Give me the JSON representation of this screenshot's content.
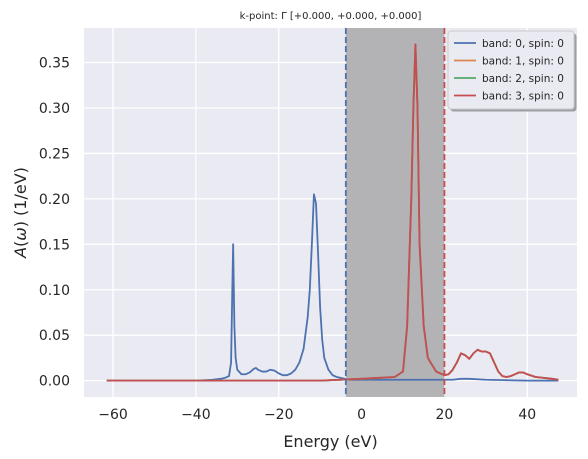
{
  "chart_data": {
    "type": "line",
    "title": "k-point: Γ [+0.000, +0.000, +0.000]",
    "xlabel": "Energy (eV)",
    "ylabel": "A(ω) (1/eV)",
    "xlim": [
      -67,
      52
    ],
    "ylim": [
      -0.018,
      0.388
    ],
    "xticks": [
      -60,
      -40,
      -20,
      0,
      20,
      40
    ],
    "yticks": [
      0.0,
      0.05,
      0.1,
      0.15,
      0.2,
      0.25,
      0.3,
      0.35
    ],
    "grid": true,
    "legend_position": "top-right",
    "shaded_region": {
      "x0": -3.8,
      "x1": 20.0,
      "color": "#b3b2b4"
    },
    "vertical_lines": [
      {
        "x": -3.8,
        "color": "#4c72b0",
        "style": "dashed"
      },
      {
        "x": 20.0,
        "color": "#c44e52",
        "style": "dashed"
      }
    ],
    "series": [
      {
        "name": "band: 0, spin: 0",
        "color": "#4c72b0",
        "x": [
          -61.5,
          -50,
          -40,
          -36,
          -34,
          -33,
          -32,
          -31.5,
          -31.2,
          -31.0,
          -30.7,
          -30.4,
          -30.0,
          -29.0,
          -28.0,
          -27.0,
          -26.0,
          -25.5,
          -25.0,
          -24.0,
          -23.0,
          -22.0,
          -21.0,
          -20.0,
          -19.0,
          -18.0,
          -17.0,
          -16.0,
          -15.0,
          -14.0,
          -13.0,
          -12.5,
          -12.0,
          -11.5,
          -11.0,
          -10.5,
          -10.0,
          -9.5,
          -9.0,
          -8.0,
          -7.0,
          -6.0,
          -5.0,
          -4.0,
          -3.0,
          0,
          10,
          20,
          22,
          24,
          26,
          30,
          40,
          47.5
        ],
        "y": [
          0.0,
          0.0,
          0.0,
          0.001,
          0.002,
          0.003,
          0.005,
          0.02,
          0.1,
          0.15,
          0.06,
          0.025,
          0.012,
          0.007,
          0.007,
          0.009,
          0.013,
          0.014,
          0.012,
          0.01,
          0.01,
          0.012,
          0.011,
          0.008,
          0.006,
          0.006,
          0.008,
          0.012,
          0.02,
          0.035,
          0.07,
          0.1,
          0.15,
          0.205,
          0.195,
          0.14,
          0.08,
          0.045,
          0.025,
          0.012,
          0.006,
          0.004,
          0.003,
          0.002,
          0.001,
          0.001,
          0.001,
          0.001,
          0.001,
          0.002,
          0.002,
          0.001,
          0.0,
          0.0
        ]
      },
      {
        "name": "band: 1, spin: 0",
        "color": "#dd8452",
        "x": [
          -61.5,
          -10,
          0,
          8,
          10,
          11,
          12,
          12.5,
          13,
          13.5,
          14,
          15,
          16,
          18,
          20,
          21,
          22,
          23,
          24,
          25,
          26,
          27,
          28,
          29,
          30,
          31,
          32,
          33,
          34,
          35,
          36,
          37,
          38,
          39,
          40,
          42,
          44,
          46,
          47.5
        ],
        "y": [
          0.0,
          0.0,
          0.002,
          0.004,
          0.01,
          0.06,
          0.2,
          0.3,
          0.37,
          0.3,
          0.15,
          0.06,
          0.025,
          0.01,
          0.006,
          0.007,
          0.012,
          0.02,
          0.03,
          0.028,
          0.024,
          0.03,
          0.034,
          0.032,
          0.032,
          0.03,
          0.02,
          0.01,
          0.005,
          0.004,
          0.005,
          0.007,
          0.009,
          0.009,
          0.007,
          0.004,
          0.003,
          0.002,
          0.001
        ]
      },
      {
        "name": "band: 2, spin: 0",
        "color": "#55a868",
        "x": [
          -61.5,
          -10,
          0,
          8,
          10,
          11,
          12,
          12.5,
          13,
          13.5,
          14,
          15,
          16,
          18,
          20,
          21,
          22,
          23,
          24,
          25,
          26,
          27,
          28,
          29,
          30,
          31,
          32,
          33,
          34,
          35,
          36,
          37,
          38,
          39,
          40,
          42,
          44,
          46,
          47.5
        ],
        "y": [
          0.0,
          0.0,
          0.002,
          0.004,
          0.01,
          0.06,
          0.2,
          0.3,
          0.37,
          0.3,
          0.15,
          0.06,
          0.025,
          0.01,
          0.006,
          0.007,
          0.012,
          0.02,
          0.03,
          0.028,
          0.024,
          0.03,
          0.034,
          0.032,
          0.032,
          0.03,
          0.02,
          0.01,
          0.005,
          0.004,
          0.005,
          0.007,
          0.009,
          0.009,
          0.007,
          0.004,
          0.003,
          0.002,
          0.001
        ]
      },
      {
        "name": "band: 3, spin: 0",
        "color": "#c44e52",
        "x": [
          -61.5,
          -10,
          0,
          8,
          10,
          11,
          12,
          12.5,
          13,
          13.5,
          14,
          15,
          16,
          18,
          20,
          21,
          22,
          23,
          24,
          25,
          26,
          27,
          28,
          29,
          30,
          31,
          32,
          33,
          34,
          35,
          36,
          37,
          38,
          39,
          40,
          42,
          44,
          46,
          47.5
        ],
        "y": [
          0.0,
          0.0,
          0.002,
          0.004,
          0.01,
          0.06,
          0.2,
          0.3,
          0.37,
          0.3,
          0.15,
          0.06,
          0.025,
          0.01,
          0.006,
          0.007,
          0.012,
          0.02,
          0.03,
          0.028,
          0.024,
          0.03,
          0.034,
          0.032,
          0.032,
          0.03,
          0.02,
          0.01,
          0.005,
          0.004,
          0.005,
          0.007,
          0.009,
          0.009,
          0.007,
          0.004,
          0.003,
          0.002,
          0.001
        ]
      }
    ]
  }
}
